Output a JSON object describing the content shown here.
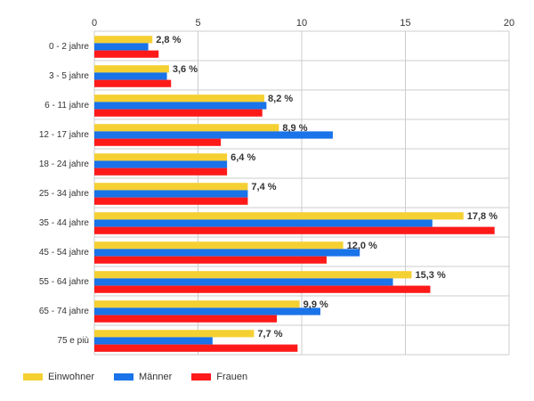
{
  "chart_data": {
    "type": "bar",
    "orientation": "horizontal",
    "categories": [
      "0 - 2 jahre",
      "3 - 5 jahre",
      "6 - 11 jahre",
      "12 - 17 jahre",
      "18 - 24 jahre",
      "25 - 34 jahre",
      "35 - 44 jahre",
      "45 - 54 jahre",
      "55 - 64 jahre",
      "65 - 74 jahre",
      "75 e più"
    ],
    "series": [
      {
        "name": "Einwohner",
        "color": "#f5d033",
        "values": [
          2.8,
          3.6,
          8.2,
          8.9,
          6.4,
          7.4,
          17.8,
          12.0,
          15.3,
          9.9,
          7.7
        ]
      },
      {
        "name": "Männer",
        "color": "#1a73e8",
        "values": [
          2.6,
          3.5,
          8.3,
          11.5,
          6.4,
          7.4,
          16.3,
          12.8,
          14.4,
          10.9,
          5.7
        ]
      },
      {
        "name": "Frauen",
        "color": "#ff1a1a",
        "values": [
          3.1,
          3.7,
          8.1,
          6.1,
          6.4,
          7.4,
          19.3,
          11.2,
          16.2,
          8.8,
          9.8
        ]
      }
    ],
    "data_labels": [
      "2,8 %",
      "3,6 %",
      "8,2 %",
      "8,9 %",
      "6,4 %",
      "7,4 %",
      "17,8 %",
      "12,0 %",
      "15,3 %",
      "9,9 %",
      "7,7 %"
    ],
    "xticks": [
      "0",
      "5",
      "10",
      "15",
      "20"
    ],
    "xlim": [
      0,
      20
    ],
    "grid": true,
    "legend_position": "bottom-left",
    "title": "",
    "xlabel": "",
    "ylabel": ""
  }
}
